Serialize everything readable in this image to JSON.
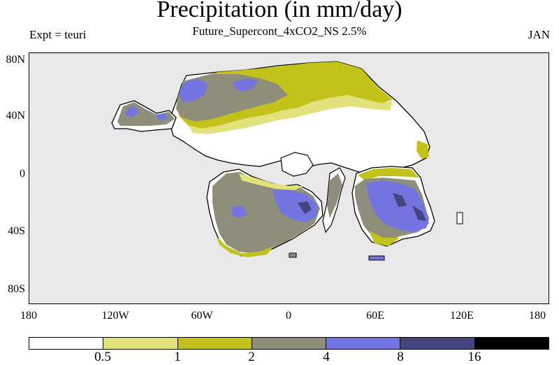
{
  "title": "Precipitation (in mm/day)",
  "subtitle": "Future_Supercont_4xCO2_NS 2.5%",
  "expt": "Expt = teuri",
  "month": "JAN",
  "axes": {
    "y_ticks": [
      "80N",
      "40N",
      "0",
      "40S",
      "80S"
    ],
    "x_ticks": [
      "180",
      "120W",
      "60W",
      "0",
      "60E",
      "120E",
      "180"
    ]
  },
  "colorbar": {
    "labels": [
      "0.5",
      "1",
      "2",
      "4",
      "8",
      "16"
    ],
    "colors": [
      "#ffffff",
      "#e2e27c",
      "#c2c21a",
      "#8e8e7a",
      "#7474e0",
      "#44447e",
      "#000000"
    ]
  },
  "colors": {
    "ocean": "#e8e8e8",
    "coast": "#000000"
  }
}
